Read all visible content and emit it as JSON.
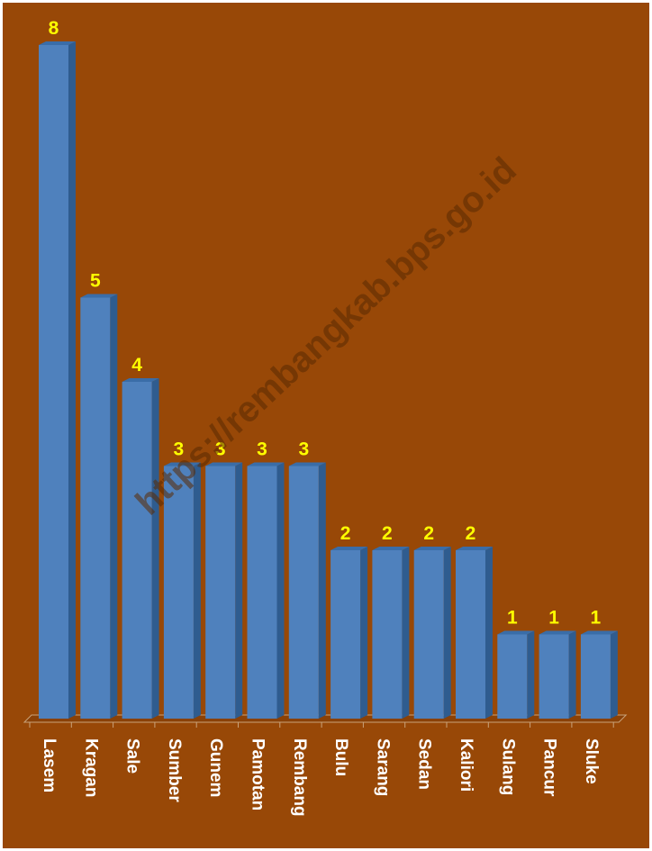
{
  "chart_data": {
    "type": "bar",
    "categories": [
      "Lasem",
      "Kragan",
      "Sale",
      "Sumber",
      "Gunem",
      "Pamotan",
      "Rembang",
      "Bulu",
      "Sarang",
      "Sedan",
      "Kaliori",
      "Sulang",
      "Pancur",
      "Sluke"
    ],
    "values": [
      8,
      5,
      4,
      3,
      3,
      3,
      3,
      2,
      2,
      2,
      2,
      1,
      1,
      1
    ],
    "title": "",
    "xlabel": "",
    "ylabel": "",
    "ylim": [
      0,
      8
    ],
    "grid": false,
    "legend": "none",
    "data_labels": true,
    "three_d": true
  },
  "watermark": "https://rembangkab.bps.go.id",
  "colors": {
    "background": "#984807",
    "bar_front": "#4F81BD",
    "bar_side": "#2F5C8F",
    "bar_top": "#3A6DA8",
    "value_label": "#FFFF00",
    "category_label": "#FFFFFF",
    "watermark": "#5A2A02"
  }
}
